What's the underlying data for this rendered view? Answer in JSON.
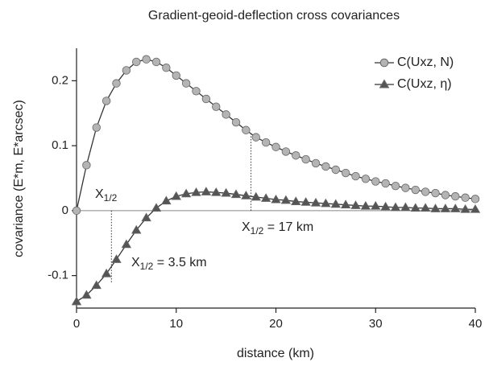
{
  "chart_data": {
    "type": "line",
    "title": "Gradient-geoid-deflection cross covariances",
    "x_label": "distance (km)",
    "y_label": "covariance (E*m, E*arcsec)",
    "x": [
      0,
      1,
      2,
      3,
      4,
      5,
      6,
      7,
      8,
      9,
      10,
      11,
      12,
      13,
      14,
      15,
      16,
      17,
      18,
      19,
      20,
      21,
      22,
      23,
      24,
      25,
      26,
      27,
      28,
      29,
      30,
      31,
      32,
      33,
      34,
      35,
      36,
      37,
      38,
      39,
      40
    ],
    "series": [
      {
        "name": "C(Uxz, N)",
        "color": "#b4b4b4",
        "marker": "circle",
        "values": [
          0,
          0.07,
          0.128,
          0.169,
          0.196,
          0.216,
          0.229,
          0.233,
          0.229,
          0.22,
          0.208,
          0.196,
          0.184,
          0.172,
          0.16,
          0.148,
          0.136,
          0.124,
          0.113,
          0.105,
          0.098,
          0.091,
          0.085,
          0.079,
          0.073,
          0.068,
          0.063,
          0.058,
          0.053,
          0.049,
          0.045,
          0.042,
          0.038,
          0.035,
          0.032,
          0.029,
          0.027,
          0.024,
          0.022,
          0.02,
          0.018
        ]
      },
      {
        "name": "C(Uxz, η)",
        "color": "#555555",
        "marker": "triangle",
        "values": [
          -0.14,
          -0.13,
          -0.115,
          -0.097,
          -0.075,
          -0.052,
          -0.03,
          -0.011,
          0.004,
          0.015,
          0.022,
          0.026,
          0.028,
          0.029,
          0.028,
          0.027,
          0.025,
          0.023,
          0.021,
          0.019,
          0.017,
          0.016,
          0.014,
          0.013,
          0.012,
          0.011,
          0.01,
          0.009,
          0.008,
          0.007,
          0.007,
          0.006,
          0.005,
          0.005,
          0.004,
          0.004,
          0.003,
          0.003,
          0.003,
          0.002,
          0.002
        ]
      }
    ],
    "xlim": [
      0,
      40
    ],
    "ylim": [
      -0.15,
      0.25
    ],
    "xticks": [
      0,
      10,
      20,
      30,
      40
    ],
    "yticks": [
      -0.1,
      0,
      0.1,
      0.2
    ],
    "legend": "upper right",
    "annotations": [
      {
        "text": "X",
        "sub": "1/2"
      },
      {
        "text": "X",
        "sub": "1/2",
        "rest": " = 17 km",
        "x": 17.5
      },
      {
        "text": "X",
        "sub": "1/2",
        "rest": " = 3.5 km",
        "x": 3.5
      }
    ]
  }
}
